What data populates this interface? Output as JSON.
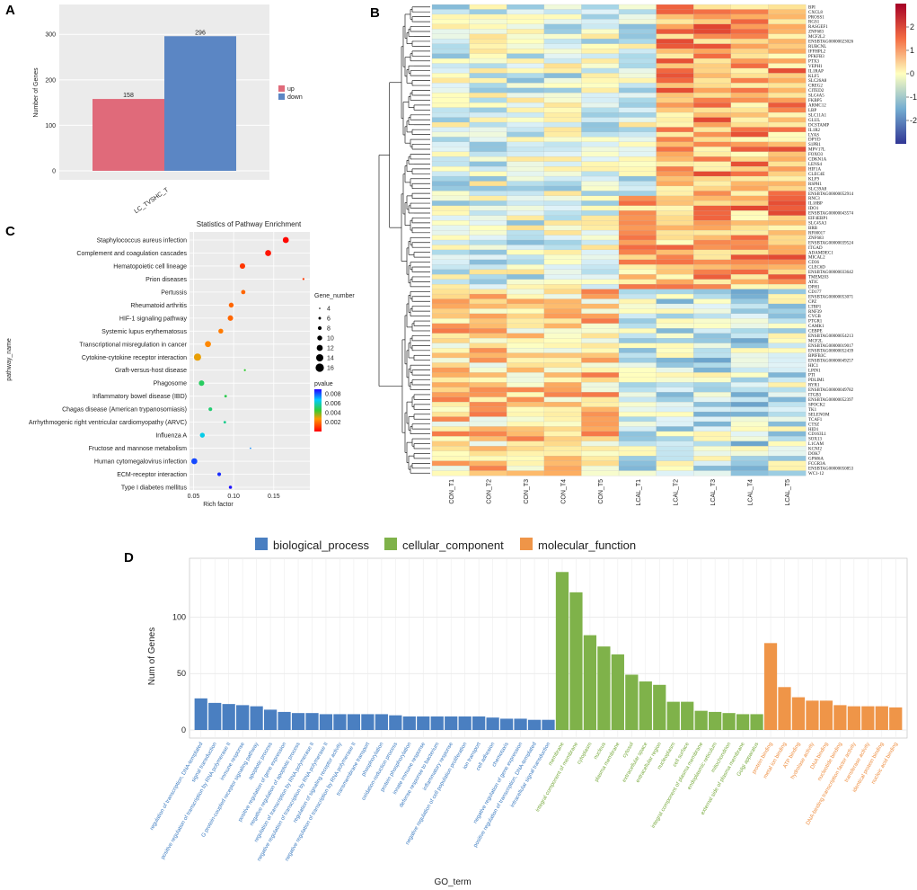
{
  "panel_labels": {
    "A": "A",
    "B": "B",
    "C": "C",
    "D": "D"
  },
  "colors": {
    "up": "#e06a7a",
    "down": "#5b86c4",
    "bp": "#4a7fc1",
    "cc": "#7fb24a",
    "mf": "#ef9548",
    "bp_label": "#3d7cc0",
    "cc_label": "#7aab41",
    "mf_label": "#ee8f42",
    "heat_low": "#313695",
    "heat_mid": "#ffffbf",
    "heat_high": "#a50026"
  },
  "chart_data": [
    {
      "id": "A",
      "type": "bar",
      "title": "",
      "categories": [
        "LC_TVSHC_T"
      ],
      "series": [
        {
          "name": "up",
          "values": [
            158
          ]
        },
        {
          "name": "down",
          "values": [
            296
          ]
        }
      ],
      "ylabel": "Number of Genes",
      "xlabel": "",
      "ylim": [
        0,
        340
      ],
      "yticks": [
        0,
        100,
        200,
        300
      ],
      "legend": [
        "up",
        "down"
      ],
      "legend_position": "right"
    },
    {
      "id": "B",
      "type": "heatmap",
      "columns": [
        "CON_T1",
        "CON_T2",
        "CON_T3",
        "CON_T4",
        "CON_T5",
        "LCAL_T1",
        "LCAL_T2",
        "LCAL_T3",
        "LCAL_T4",
        "LCAL_T5"
      ],
      "rows": [
        "BPI",
        "CXCL8",
        "PROSS1",
        "RGS1",
        "RASGEF1",
        "ZNF683",
        "MCF2L2",
        "ENSBTAG00000023026",
        "RUBCNL",
        "IFFHPL2",
        "PFKFB3",
        "PTX3",
        "VEPH1",
        "IL1RAP",
        "KLF5",
        "SLC26A8",
        "CREG2",
        "CITED2",
        "SLC4A5",
        "FKBP5",
        "ARMC12",
        "LBP",
        "SLC11A1",
        "GLUL",
        "DCSTAMP",
        "IL1R2",
        "LYAS",
        "DPYD",
        "S1PR1",
        "MPV17L",
        "FOXO3",
        "CDKN1A",
        "LENS4",
        "HIF1A",
        "CLEC4E",
        "KLF9",
        "RSPH1",
        "SLC39A8",
        "ENSBTAG00000052914",
        "RNC3",
        "IL18BP",
        "IDO1",
        "ENSBTAG00000043574",
        "EIF4EBP1",
        "SLC45A3",
        "BRB",
        "RF00017",
        "ZNF683",
        "ENSBTAG00000039524",
        "ITGAD",
        "ADAMDEC1",
        "MICAL2",
        "CD36",
        "CLEC6D",
        "ENSBTAG00000033642",
        "TMEM203",
        "ATIC",
        "DPH1",
        "CD177",
        "ENSBTAG00000053071",
        "CPZ",
        "LTBP1",
        "RNF39",
        "CYGB",
        "PTGR1",
        "CAMK1",
        "CEBPE",
        "ENSBTAG00000054213",
        "MCF2L",
        "ENSBTAG00000019017",
        "ENSBTAG00000052439",
        "BPIFB3C",
        "ENSBTAG00000049257",
        "HIC1",
        "LPIN1",
        "PTI",
        "PDLIM1",
        "RYR1",
        "ENSBTAG00000049782",
        "ITGB3",
        "ENSBTAG00000052397",
        "SPOCK2",
        "TK1",
        "SELENOM",
        "TCAF1",
        "CTSZ",
        "HID1",
        "CD163L1",
        "SOX13",
        "L1CAM",
        "KCNJ2",
        "DOK7",
        "GPM6A",
        "FCGR3A",
        "ENSBTAG00000050853",
        "WC1-12"
      ],
      "colorbar_ticks": [
        2,
        1,
        0,
        -1,
        -2
      ],
      "value_range": [
        -3,
        3
      ]
    },
    {
      "id": "C",
      "type": "scatter",
      "title": "Statistics of Pathway Enrichment",
      "xlabel": "Rich factor",
      "ylabel": "pathway_name",
      "xlim": [
        0.045,
        0.195
      ],
      "xticks": [
        "0.05",
        "0.10",
        "0.15"
      ],
      "points": [
        {
          "pathway": "Staphylococcus aureus infection",
          "rich": 0.165,
          "genes": 12,
          "pvalue": 0.0001
        },
        {
          "pathway": "Complement and coagulation cascades",
          "rich": 0.143,
          "genes": 12,
          "pvalue": 0.0003
        },
        {
          "pathway": "Hematopoietic cell lineage",
          "rich": 0.111,
          "genes": 11,
          "pvalue": 0.0008
        },
        {
          "pathway": "Prion diseases",
          "rich": 0.187,
          "genes": 5,
          "pvalue": 0.0008
        },
        {
          "pathway": "Pertussis",
          "rich": 0.112,
          "genes": 9,
          "pvalue": 0.0015
        },
        {
          "pathway": "Rheumatoid arthritis",
          "rich": 0.097,
          "genes": 10,
          "pvalue": 0.0015
        },
        {
          "pathway": "HIF-1 signaling pathway",
          "rich": 0.096,
          "genes": 11,
          "pvalue": 0.0015
        },
        {
          "pathway": "Systemic lupus erythematosus",
          "rich": 0.084,
          "genes": 10,
          "pvalue": 0.0018
        },
        {
          "pathway": "Transcriptional misregulation in cancer",
          "rich": 0.068,
          "genes": 12,
          "pvalue": 0.002
        },
        {
          "pathway": "Cytokine-cytokine receptor interaction",
          "rich": 0.055,
          "genes": 14,
          "pvalue": 0.0025
        },
        {
          "pathway": "Graft-versus-host disease",
          "rich": 0.114,
          "genes": 5,
          "pvalue": 0.0045
        },
        {
          "pathway": "Phagosome",
          "rich": 0.06,
          "genes": 11,
          "pvalue": 0.005
        },
        {
          "pathway": "Inflammatory bowel disease (IBD)",
          "rich": 0.09,
          "genes": 6,
          "pvalue": 0.0048
        },
        {
          "pathway": "Chagas disease (American trypanosomiasis)",
          "rich": 0.071,
          "genes": 8,
          "pvalue": 0.0052
        },
        {
          "pathway": "Arrhythmogenic right ventricular cardiomyopathy (ARVC)",
          "rich": 0.089,
          "genes": 6,
          "pvalue": 0.0055
        },
        {
          "pathway": "Influenza A",
          "rich": 0.061,
          "genes": 10,
          "pvalue": 0.0065
        },
        {
          "pathway": "Fructose and mannose metabolism",
          "rich": 0.121,
          "genes": 4,
          "pvalue": 0.0075
        },
        {
          "pathway": "Human cytomegalovirus infection",
          "rich": 0.051,
          "genes": 12,
          "pvalue": 0.0082
        },
        {
          "pathway": "ECM-receptor interaction",
          "rich": 0.082,
          "genes": 8,
          "pvalue": 0.0085
        },
        {
          "pathway": "Type I diabetes mellitus",
          "rich": 0.096,
          "genes": 7,
          "pvalue": 0.0088
        }
      ],
      "size_legend_title": "Gene_number",
      "size_legend": [
        4,
        6,
        8,
        10,
        12,
        14,
        16
      ],
      "color_legend_title": "pvalue",
      "color_legend": [
        "0.008",
        "0.006",
        "0.004",
        "0.002"
      ]
    },
    {
      "id": "D",
      "type": "bar",
      "title": "",
      "xlabel": "GO_term",
      "ylabel": "Num of Genes",
      "ylim": [
        0,
        145
      ],
      "yticks": [
        0,
        50,
        100
      ],
      "legend": [
        "biological_process",
        "cellular_component",
        "molecular_function"
      ],
      "legend_position": "top",
      "categories": [
        {
          "term": "regulation of transcription, DNA-templated",
          "group": "biological_process",
          "value": 28
        },
        {
          "term": "signal transduction",
          "group": "biological_process",
          "value": 24
        },
        {
          "term": "positive regulation of transcription by RNA polymerase II",
          "group": "biological_process",
          "value": 23
        },
        {
          "term": "immune response",
          "group": "biological_process",
          "value": 22
        },
        {
          "term": "G protein-coupled receptor signaling pathway",
          "group": "biological_process",
          "value": 21
        },
        {
          "term": "apoptotic process",
          "group": "biological_process",
          "value": 18
        },
        {
          "term": "positive regulation of gene expression",
          "group": "biological_process",
          "value": 16
        },
        {
          "term": "negative regulation of apoptotic process",
          "group": "biological_process",
          "value": 15
        },
        {
          "term": "regulation of transcription by RNA polymerase II",
          "group": "biological_process",
          "value": 15
        },
        {
          "term": "negative regulation of transcription by RNA polymerase II",
          "group": "biological_process",
          "value": 14
        },
        {
          "term": "regulation of signaling receptor activity",
          "group": "biological_process",
          "value": 14
        },
        {
          "term": "negative regulation of transcription by RNA polymerase II",
          "group": "biological_process",
          "value": 14
        },
        {
          "term": "transmembrane transport",
          "group": "biological_process",
          "value": 14
        },
        {
          "term": "phosphorylation",
          "group": "biological_process",
          "value": 14
        },
        {
          "term": "oxidation-reduction process",
          "group": "biological_process",
          "value": 13
        },
        {
          "term": "protein phosphorylation",
          "group": "biological_process",
          "value": 12
        },
        {
          "term": "innate immune response",
          "group": "biological_process",
          "value": 12
        },
        {
          "term": "defense response to bacterium",
          "group": "biological_process",
          "value": 12
        },
        {
          "term": "inflammatory response",
          "group": "biological_process",
          "value": 12
        },
        {
          "term": "negative regulation of cell population proliferation",
          "group": "biological_process",
          "value": 12
        },
        {
          "term": "ion transport",
          "group": "biological_process",
          "value": 12
        },
        {
          "term": "cell adhesion",
          "group": "biological_process",
          "value": 11
        },
        {
          "term": "chemotaxis",
          "group": "biological_process",
          "value": 10
        },
        {
          "term": "negative regulation of gene expression",
          "group": "biological_process",
          "value": 10
        },
        {
          "term": "positive regulation of transcription, DNA-templated",
          "group": "biological_process",
          "value": 9
        },
        {
          "term": "intracellular signal transduction",
          "group": "biological_process",
          "value": 9
        },
        {
          "term": "membrane",
          "group": "cellular_component",
          "value": 140
        },
        {
          "term": "integral component of membrane",
          "group": "cellular_component",
          "value": 122
        },
        {
          "term": "cytoplasm",
          "group": "cellular_component",
          "value": 84
        },
        {
          "term": "nucleus",
          "group": "cellular_component",
          "value": 74
        },
        {
          "term": "plasma membrane",
          "group": "cellular_component",
          "value": 67
        },
        {
          "term": "cytosol",
          "group": "cellular_component",
          "value": 49
        },
        {
          "term": "extracellular space",
          "group": "cellular_component",
          "value": 43
        },
        {
          "term": "extracellular region",
          "group": "cellular_component",
          "value": 40
        },
        {
          "term": "nucleoplasm",
          "group": "cellular_component",
          "value": 25
        },
        {
          "term": "cell surface",
          "group": "cellular_component",
          "value": 25
        },
        {
          "term": "integral component of plasma membrane",
          "group": "cellular_component",
          "value": 17
        },
        {
          "term": "endoplasmic reticulum",
          "group": "cellular_component",
          "value": 16
        },
        {
          "term": "mitochondrion",
          "group": "cellular_component",
          "value": 15
        },
        {
          "term": "external side of plasma membrane",
          "group": "cellular_component",
          "value": 14
        },
        {
          "term": "Golgi apparatus",
          "group": "cellular_component",
          "value": 14
        },
        {
          "term": "protein binding",
          "group": "molecular_function",
          "value": 77
        },
        {
          "term": "metal ion binding",
          "group": "molecular_function",
          "value": 38
        },
        {
          "term": "ATP binding",
          "group": "molecular_function",
          "value": 29
        },
        {
          "term": "hydrolase activity",
          "group": "molecular_function",
          "value": 26
        },
        {
          "term": "DNA binding",
          "group": "molecular_function",
          "value": 26
        },
        {
          "term": "nucleotide binding",
          "group": "molecular_function",
          "value": 22
        },
        {
          "term": "DNA-binding transcription factor activity",
          "group": "molecular_function",
          "value": 21
        },
        {
          "term": "transferase activity",
          "group": "molecular_function",
          "value": 21
        },
        {
          "term": "identical protein binding",
          "group": "molecular_function",
          "value": 21
        },
        {
          "term": "nucleic acid binding",
          "group": "molecular_function",
          "value": 20
        }
      ]
    }
  ]
}
